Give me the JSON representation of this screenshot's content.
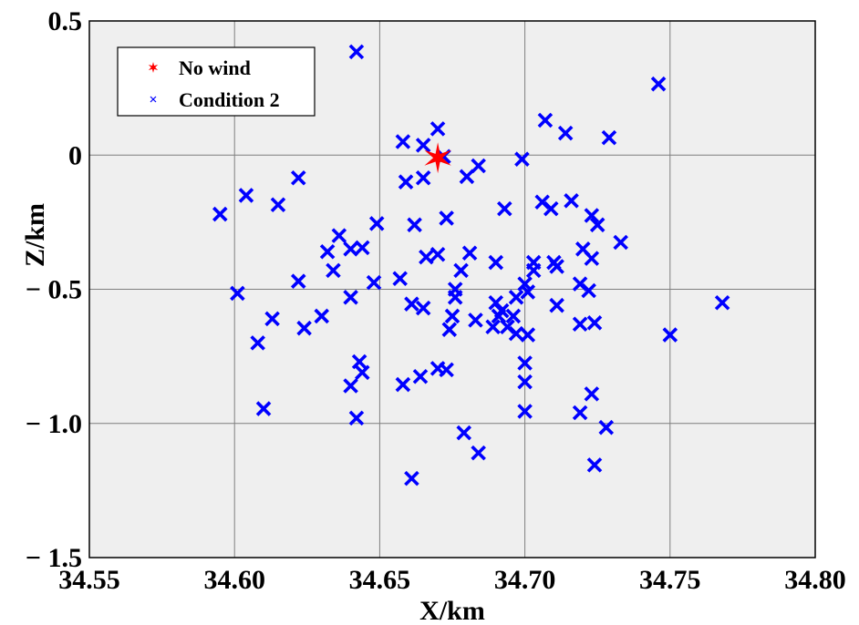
{
  "chart_data": {
    "type": "scatter",
    "xlabel": "X/km",
    "ylabel": "Z/km",
    "xlim": [
      34.55,
      34.8
    ],
    "ylim": [
      -1.5,
      0.5
    ],
    "xticks": [
      34.55,
      34.6,
      34.65,
      34.7,
      34.75,
      34.8
    ],
    "xtick_labels": [
      "34.55",
      "34.60",
      "34.65",
      "34.70",
      "34.75",
      "34.80"
    ],
    "yticks": [
      0.5,
      0,
      -0.5,
      -1.0,
      -1.5
    ],
    "ytick_labels": [
      "0.5",
      "0",
      "− 0.5",
      "− 1.0",
      "− 1.5"
    ],
    "grid": true,
    "legend_position": "top-left",
    "background_color": "#efefef",
    "series": [
      {
        "name": "No wind",
        "marker": "star",
        "color": "#ff0000",
        "points": [
          [
            34.67,
            -0.01
          ]
        ]
      },
      {
        "name": "Condition 2",
        "marker": "x",
        "color": "#0000ff",
        "points": [
          [
            34.642,
            0.385
          ],
          [
            34.746,
            0.265
          ],
          [
            34.707,
            0.13
          ],
          [
            34.714,
            0.082
          ],
          [
            34.729,
            0.065
          ],
          [
            34.67,
            0.098
          ],
          [
            34.658,
            0.05
          ],
          [
            34.665,
            0.037
          ],
          [
            34.672,
            -0.005
          ],
          [
            34.699,
            -0.015
          ],
          [
            34.684,
            -0.04
          ],
          [
            34.68,
            -0.08
          ],
          [
            34.622,
            -0.085
          ],
          [
            34.665,
            -0.085
          ],
          [
            34.659,
            -0.1
          ],
          [
            34.604,
            -0.15
          ],
          [
            34.615,
            -0.185
          ],
          [
            34.595,
            -0.22
          ],
          [
            34.706,
            -0.175
          ],
          [
            34.716,
            -0.17
          ],
          [
            34.709,
            -0.2
          ],
          [
            34.693,
            -0.2
          ],
          [
            34.723,
            -0.225
          ],
          [
            34.673,
            -0.235
          ],
          [
            34.725,
            -0.26
          ],
          [
            34.662,
            -0.26
          ],
          [
            34.649,
            -0.255
          ],
          [
            34.636,
            -0.3
          ],
          [
            34.733,
            -0.325
          ],
          [
            34.644,
            -0.345
          ],
          [
            34.64,
            -0.35
          ],
          [
            34.632,
            -0.36
          ],
          [
            34.681,
            -0.365
          ],
          [
            34.67,
            -0.37
          ],
          [
            34.666,
            -0.38
          ],
          [
            34.72,
            -0.35
          ],
          [
            34.723,
            -0.385
          ],
          [
            34.69,
            -0.4
          ],
          [
            34.703,
            -0.4
          ],
          [
            34.71,
            -0.4
          ],
          [
            34.711,
            -0.415
          ],
          [
            34.703,
            -0.43
          ],
          [
            34.678,
            -0.43
          ],
          [
            34.634,
            -0.43
          ],
          [
            34.657,
            -0.46
          ],
          [
            34.622,
            -0.47
          ],
          [
            34.648,
            -0.475
          ],
          [
            34.719,
            -0.48
          ],
          [
            34.7,
            -0.48
          ],
          [
            34.676,
            -0.5
          ],
          [
            34.701,
            -0.51
          ],
          [
            34.722,
            -0.505
          ],
          [
            34.601,
            -0.515
          ],
          [
            34.64,
            -0.53
          ],
          [
            34.697,
            -0.53
          ],
          [
            34.676,
            -0.53
          ],
          [
            34.69,
            -0.55
          ],
          [
            34.768,
            -0.55
          ],
          [
            34.661,
            -0.555
          ],
          [
            34.711,
            -0.56
          ],
          [
            34.665,
            -0.57
          ],
          [
            34.692,
            -0.58
          ],
          [
            34.63,
            -0.6
          ],
          [
            34.691,
            -0.6
          ],
          [
            34.696,
            -0.6
          ],
          [
            34.675,
            -0.6
          ],
          [
            34.613,
            -0.61
          ],
          [
            34.683,
            -0.615
          ],
          [
            34.724,
            -0.625
          ],
          [
            34.719,
            -0.63
          ],
          [
            34.689,
            -0.64
          ],
          [
            34.694,
            -0.64
          ],
          [
            34.624,
            -0.645
          ],
          [
            34.674,
            -0.65
          ],
          [
            34.697,
            -0.665
          ],
          [
            34.701,
            -0.67
          ],
          [
            34.75,
            -0.67
          ],
          [
            34.608,
            -0.7
          ],
          [
            34.7,
            -0.775
          ],
          [
            34.643,
            -0.77
          ],
          [
            34.67,
            -0.795
          ],
          [
            34.673,
            -0.8
          ],
          [
            34.644,
            -0.81
          ],
          [
            34.664,
            -0.825
          ],
          [
            34.7,
            -0.845
          ],
          [
            34.658,
            -0.855
          ],
          [
            34.64,
            -0.86
          ],
          [
            34.723,
            -0.89
          ],
          [
            34.61,
            -0.945
          ],
          [
            34.7,
            -0.955
          ],
          [
            34.719,
            -0.96
          ],
          [
            34.642,
            -0.98
          ],
          [
            34.728,
            -1.015
          ],
          [
            34.679,
            -1.035
          ],
          [
            34.684,
            -1.11
          ],
          [
            34.724,
            -1.155
          ],
          [
            34.661,
            -1.205
          ]
        ]
      }
    ]
  }
}
